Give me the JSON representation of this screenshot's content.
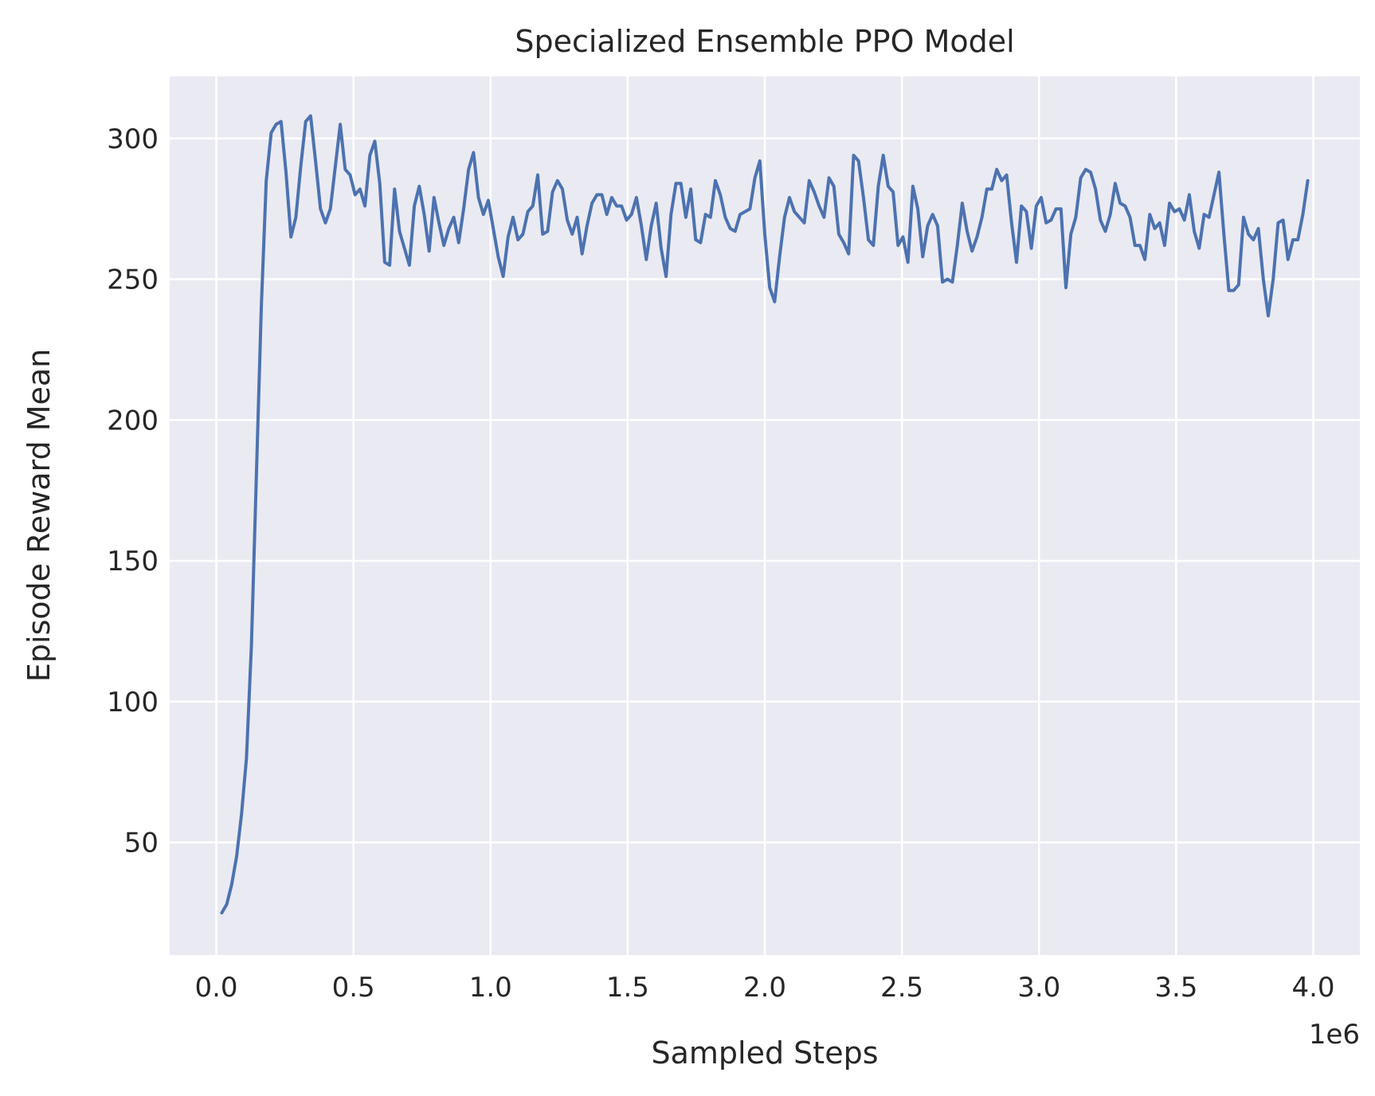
{
  "chart_data": {
    "type": "line",
    "title": "Specialized Ensemble PPO Model",
    "xlabel": "Sampled Steps",
    "ylabel": "Episode Reward Mean",
    "x_offset_label": "1e6",
    "xlim": [
      -170000,
      4170000
    ],
    "ylim": [
      10,
      322
    ],
    "x_ticks": [
      0,
      500000,
      1000000,
      1500000,
      2000000,
      2500000,
      3000000,
      3500000,
      4000000
    ],
    "x_tick_labels": [
      "0.0",
      "0.5",
      "1.0",
      "1.5",
      "2.0",
      "2.5",
      "3.0",
      "3.5",
      "4.0"
    ],
    "y_ticks": [
      50,
      100,
      150,
      200,
      250,
      300
    ],
    "y_tick_labels": [
      "50",
      "100",
      "150",
      "200",
      "250",
      "300"
    ],
    "grid": true,
    "legend": "none",
    "colors": {
      "line": "#4c72b0",
      "plot_background": "#eaeaf2",
      "grid": "#ffffff"
    },
    "series": [
      {
        "values": [
          25,
          28,
          35,
          45,
          60,
          80,
          120,
          180,
          240,
          285,
          302,
          305,
          306,
          288,
          265,
          272,
          290,
          306,
          308,
          292,
          275,
          270,
          275,
          290,
          305,
          289,
          287,
          280,
          282,
          276,
          294,
          299,
          284,
          256,
          255,
          282,
          267,
          261,
          255,
          276,
          283,
          273,
          260,
          279,
          270,
          262,
          268,
          272,
          263,
          275,
          289,
          295,
          279,
          273,
          278,
          268,
          258,
          251,
          265,
          272,
          264,
          266,
          274,
          276,
          287,
          266,
          267,
          281,
          285,
          282,
          271,
          266,
          272,
          259,
          269,
          277,
          280,
          280,
          273,
          279,
          276,
          276,
          271,
          273,
          279,
          269,
          257,
          269,
          277,
          261,
          251,
          273,
          284,
          284,
          272,
          282,
          264,
          263,
          273,
          272,
          285,
          280,
          272,
          268,
          267,
          273,
          274,
          275,
          286,
          292,
          266,
          247,
          242,
          258,
          272,
          279,
          274,
          272,
          270,
          285,
          281,
          276,
          272,
          286,
          283,
          266,
          263,
          259,
          294,
          292,
          279,
          264,
          262,
          283,
          294,
          283,
          281,
          262,
          265,
          256,
          283,
          275,
          258,
          269,
          273,
          269,
          249,
          250,
          249,
          262,
          277,
          267,
          260,
          265,
          272,
          282,
          282,
          289,
          285,
          287,
          270,
          256,
          276,
          274,
          261,
          276,
          279,
          270,
          271,
          275,
          275,
          247,
          266,
          272,
          286,
          289,
          288,
          282,
          271,
          267,
          273,
          284,
          277,
          276,
          272,
          262,
          262,
          257,
          273,
          268,
          270,
          262,
          277,
          274,
          275,
          271,
          280,
          267,
          261,
          273,
          272,
          280,
          288,
          266,
          246,
          246,
          248,
          272,
          266,
          264,
          268,
          250,
          237,
          250,
          270,
          271,
          257,
          264,
          264,
          273,
          285
        ]
      }
    ]
  }
}
